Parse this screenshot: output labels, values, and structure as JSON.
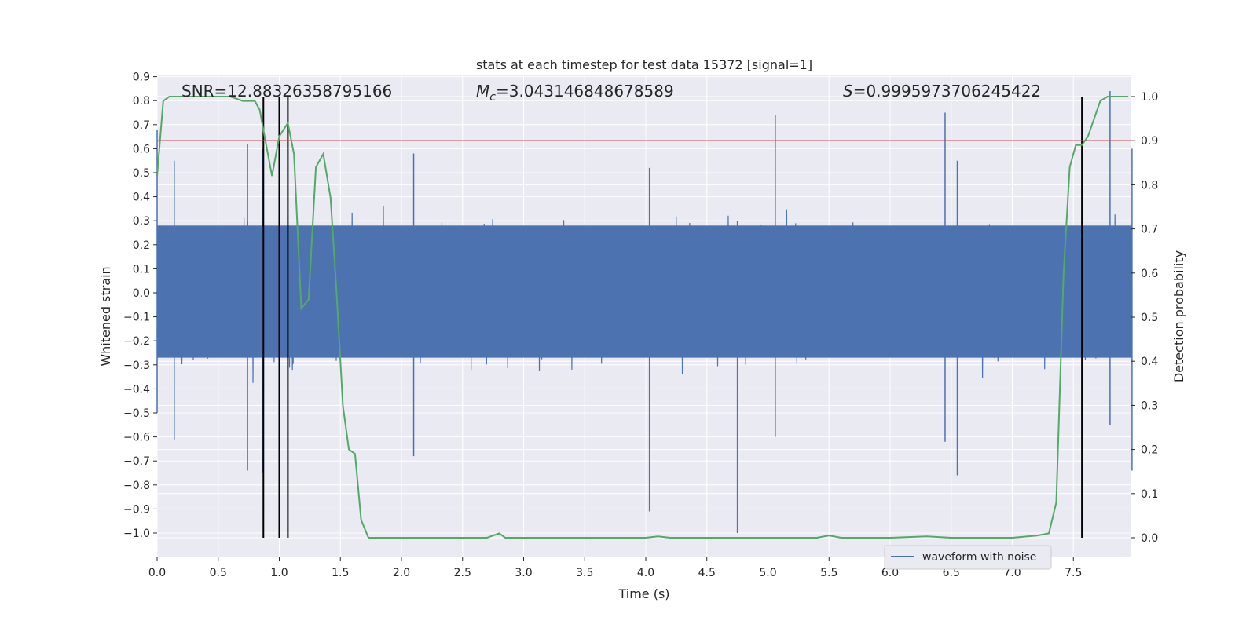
{
  "chart_data": {
    "type": "line",
    "title": "stats at each timestep for test data 15372 [signal=1]",
    "xlabel": "Time (s)",
    "ylabel": "Whitened strain",
    "y2label": "Detection probability",
    "xlim": [
      0,
      8
    ],
    "ylim": [
      -1.09,
      0.92
    ],
    "y2lim": [
      -0.05,
      1.05
    ],
    "xticks": [
      "0.0",
      "0.5",
      "1.0",
      "1.5",
      "2.0",
      "2.5",
      "3.0",
      "3.5",
      "4.0",
      "4.5",
      "5.0",
      "5.5",
      "6.0",
      "6.5",
      "7.0",
      "7.5"
    ],
    "yticks": [
      "0.9",
      "0.8",
      "0.7",
      "0.6",
      "0.5",
      "0.4",
      "0.3",
      "0.2",
      "0.1",
      "0.0",
      "−0.1",
      "−0.2",
      "−0.3",
      "−0.4",
      "−0.5",
      "−0.6",
      "−0.7",
      "−0.8",
      "−0.9",
      "−1.0"
    ],
    "y2ticks": [
      "1.0",
      "0.9",
      "0.8",
      "0.7",
      "0.6",
      "0.5",
      "0.4",
      "0.3",
      "0.2",
      "0.1",
      "0.0"
    ],
    "grid": true,
    "legend_placement": "lower-right",
    "annotations": {
      "snr": "SNR=12.88326358795166",
      "mc_symbol": "M",
      "mc_subscript": "c",
      "mc_value": "=3.043146848678589",
      "s_symbol": "S",
      "s_value": "=0.9995973706245422"
    },
    "threshold": {
      "axis": "right",
      "value": 0.9,
      "color": "#c44e52"
    },
    "vertical_lines_x": [
      0.87,
      1.0,
      1.07,
      7.57
    ],
    "series": [
      {
        "name": "waveform with noise",
        "axis": "left",
        "color": "#4c72b0",
        "envelope_peaks": [
          {
            "x": 0.0,
            "max": 0.68,
            "min": -0.5
          },
          {
            "x": 0.14,
            "max": 0.55,
            "min": -0.61
          },
          {
            "x": 0.74,
            "max": 0.62,
            "min": -0.74
          },
          {
            "x": 0.86,
            "max": 0.6,
            "min": -0.75
          },
          {
            "x": 2.1,
            "max": 0.58,
            "min": -0.68
          },
          {
            "x": 4.03,
            "max": 0.52,
            "min": -0.91
          },
          {
            "x": 4.75,
            "max": 0.3,
            "min": -1.0
          },
          {
            "x": 5.06,
            "max": 0.74,
            "min": -0.6
          },
          {
            "x": 6.45,
            "max": 0.75,
            "min": -0.62
          },
          {
            "x": 6.55,
            "max": 0.55,
            "min": -0.76
          },
          {
            "x": 7.8,
            "max": 0.84,
            "min": -0.55
          },
          {
            "x": 7.98,
            "max": 0.6,
            "min": -0.74
          }
        ]
      },
      {
        "name": "",
        "axis": "right",
        "color": "#55a868",
        "x": [
          0.0,
          0.05,
          0.1,
          0.2,
          0.4,
          0.6,
          0.7,
          0.8,
          0.84,
          0.88,
          0.94,
          1.0,
          1.07,
          1.12,
          1.18,
          1.24,
          1.3,
          1.36,
          1.42,
          1.47,
          1.52,
          1.57,
          1.62,
          1.67,
          1.73,
          1.8,
          2.0,
          2.2,
          2.5,
          2.7,
          2.8,
          2.85,
          2.9,
          3.0,
          3.5,
          4.0,
          4.1,
          4.2,
          4.5,
          5.0,
          5.4,
          5.5,
          5.6,
          6.0,
          6.3,
          6.5,
          7.0,
          7.2,
          7.3,
          7.36,
          7.42,
          7.47,
          7.52,
          7.57,
          7.62,
          7.67,
          7.72,
          7.78,
          7.86,
          7.95
        ],
        "values": [
          0.82,
          0.99,
          1.0,
          1.0,
          1.0,
          1.0,
          0.99,
          0.99,
          0.97,
          0.91,
          0.82,
          0.91,
          0.94,
          0.87,
          0.52,
          0.54,
          0.84,
          0.87,
          0.77,
          0.55,
          0.3,
          0.2,
          0.19,
          0.04,
          0.0,
          0.0,
          0.0,
          0.0,
          0.0,
          0.0,
          0.01,
          0.0,
          0.0,
          0.0,
          0.0,
          0.0,
          0.003,
          0.0,
          0.0,
          0.0,
          0.0,
          0.005,
          0.0,
          0.0,
          0.003,
          0.0,
          0.0,
          0.005,
          0.01,
          0.08,
          0.6,
          0.84,
          0.89,
          0.89,
          0.91,
          0.95,
          0.99,
          1.0,
          1.0,
          1.0
        ]
      }
    ]
  }
}
